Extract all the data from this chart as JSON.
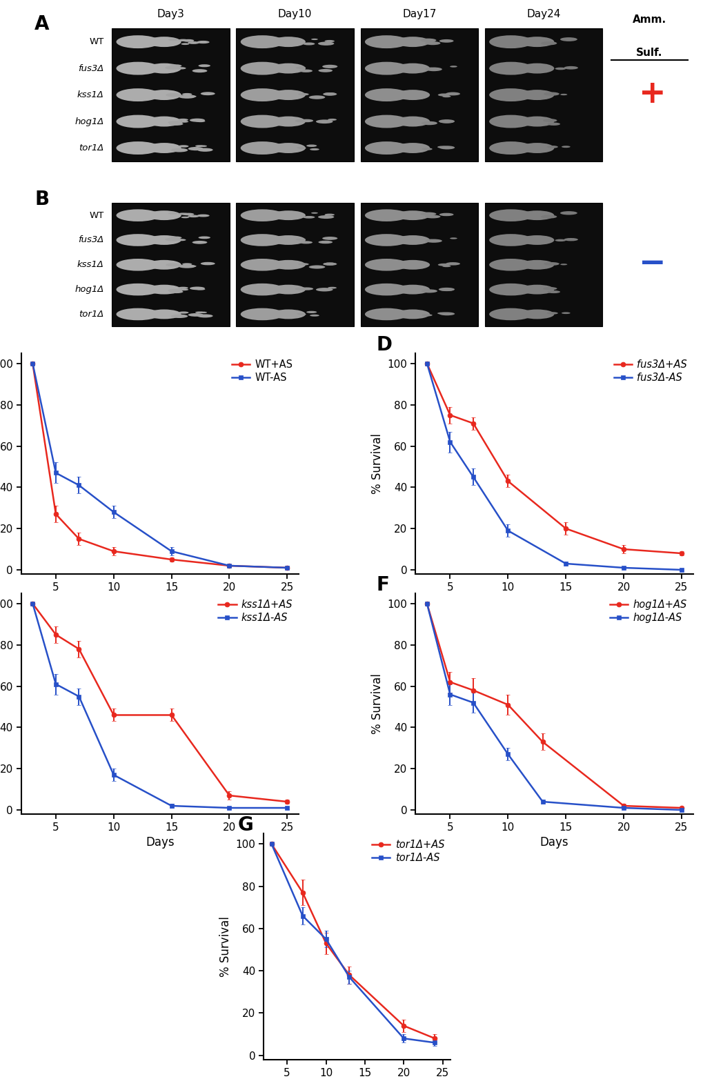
{
  "red_color": "#e8281e",
  "blue_color": "#2750c8",
  "ylabel": "% Survival",
  "xlabel": "Days",
  "xlim": [
    2,
    26
  ],
  "ylim": [
    -2,
    105
  ],
  "xticks": [
    5,
    10,
    15,
    20,
    25
  ],
  "yticks": [
    0,
    20,
    40,
    60,
    80,
    100
  ],
  "C_red_x": [
    3,
    5,
    7,
    10,
    15,
    20,
    25
  ],
  "C_red_y": [
    100,
    27,
    15,
    9,
    5,
    2,
    1
  ],
  "C_red_err": [
    0,
    4,
    3,
    2,
    1,
    0.5,
    0.3
  ],
  "C_blue_x": [
    3,
    5,
    7,
    10,
    15,
    20,
    25
  ],
  "C_blue_y": [
    100,
    47,
    41,
    28,
    9,
    2,
    1
  ],
  "C_blue_err": [
    0,
    5,
    4,
    3,
    2,
    0.5,
    0.3
  ],
  "C_legend_red": "WT+AS",
  "C_legend_blue": "WT-AS",
  "D_red_x": [
    3,
    5,
    7,
    10,
    15,
    20,
    25
  ],
  "D_red_y": [
    100,
    75,
    71,
    43,
    20,
    10,
    8
  ],
  "D_red_err": [
    0,
    4,
    3,
    3,
    3,
    2,
    1
  ],
  "D_blue_x": [
    3,
    5,
    7,
    10,
    15,
    20,
    25
  ],
  "D_blue_y": [
    100,
    62,
    45,
    19,
    3,
    1,
    0
  ],
  "D_blue_err": [
    0,
    5,
    4,
    3,
    1,
    0.5,
    0.2
  ],
  "D_legend_red": "fus3Δ+AS",
  "D_legend_blue": "fus3Δ-AS",
  "E_red_x": [
    3,
    5,
    7,
    10,
    15,
    20,
    25
  ],
  "E_red_y": [
    100,
    85,
    78,
    46,
    46,
    7,
    4
  ],
  "E_red_err": [
    0,
    4,
    4,
    3,
    3,
    2,
    1
  ],
  "E_blue_x": [
    3,
    5,
    7,
    10,
    15,
    20,
    25
  ],
  "E_blue_y": [
    100,
    61,
    55,
    17,
    2,
    1,
    1
  ],
  "E_blue_err": [
    0,
    5,
    4,
    3,
    1,
    0.5,
    0.5
  ],
  "E_legend_red": "kss1Δ+AS",
  "E_legend_blue": "kss1Δ-AS",
  "F_red_x": [
    3,
    5,
    7,
    10,
    13,
    20,
    25
  ],
  "F_red_y": [
    100,
    62,
    58,
    51,
    33,
    2,
    1
  ],
  "F_red_err": [
    0,
    5,
    6,
    5,
    4,
    1,
    0.5
  ],
  "F_blue_x": [
    3,
    5,
    7,
    10,
    13,
    20,
    25
  ],
  "F_blue_y": [
    100,
    56,
    52,
    27,
    4,
    1,
    0
  ],
  "F_blue_err": [
    0,
    5,
    5,
    3,
    1,
    0.5,
    0.2
  ],
  "F_legend_red": "hog1Δ+AS",
  "F_legend_blue": "hog1Δ-AS",
  "G_red_x": [
    3,
    7,
    10,
    13,
    20,
    24
  ],
  "G_red_y": [
    100,
    77,
    53,
    38,
    14,
    8
  ],
  "G_red_err": [
    0,
    6,
    5,
    4,
    3,
    2
  ],
  "G_blue_x": [
    3,
    7,
    10,
    13,
    20,
    24
  ],
  "G_blue_y": [
    100,
    66,
    55,
    37,
    8,
    6
  ],
  "G_blue_err": [
    0,
    4,
    4,
    3,
    2,
    1.5
  ],
  "G_legend_red": "tor1Δ+AS",
  "G_legend_blue": "tor1Δ-AS",
  "spot_row_labels": [
    "WT",
    "fus3Δ",
    "kss1Δ",
    "hog1Δ",
    "tor1Δ"
  ],
  "spot_day_labels": [
    "Day3",
    "Day10",
    "Day17",
    "Day24"
  ]
}
